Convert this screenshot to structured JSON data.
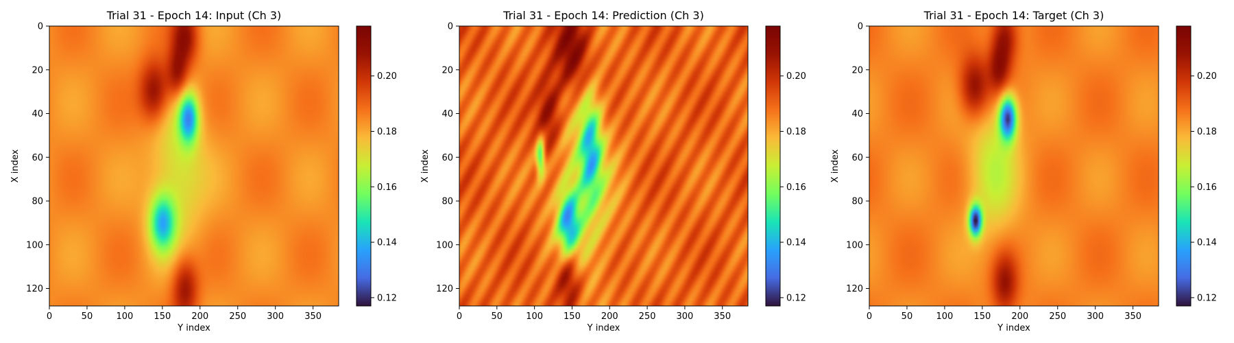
{
  "chart_data": [
    {
      "type": "heatmap",
      "title": "Trial 31 - Epoch 14: Input (Ch 3)",
      "xlabel": "Y index",
      "ylabel": "X index",
      "xlim": [
        0,
        384
      ],
      "ylim": [
        128,
        0
      ],
      "x_ticks": [
        "0",
        "50",
        "100",
        "150",
        "200",
        "250",
        "300",
        "350"
      ],
      "y_ticks": [
        "0",
        "20",
        "40",
        "60",
        "80",
        "100",
        "120"
      ],
      "colormap": "turbo",
      "colorbar": {
        "range": [
          0.117,
          0.218
        ],
        "ticks": [
          "0.12",
          "0.14",
          "0.16",
          "0.18",
          "0.20"
        ]
      },
      "background_value": 0.184,
      "features": [
        {
          "kind": "high",
          "x": 180,
          "y": 5,
          "sx": 12,
          "sy": 9,
          "value": 0.21
        },
        {
          "kind": "high",
          "x": 140,
          "y": 30,
          "sx": 14,
          "sy": 10,
          "value": 0.212
        },
        {
          "kind": "high",
          "x": 170,
          "y": 22,
          "sx": 10,
          "sy": 8,
          "value": 0.208
        },
        {
          "kind": "low",
          "x": 185,
          "y": 42,
          "sx": 9,
          "sy": 8,
          "value": 0.14
        },
        {
          "kind": "low",
          "x": 150,
          "y": 90,
          "sx": 12,
          "sy": 9,
          "value": 0.145
        },
        {
          "kind": "mid",
          "x": 170,
          "y": 65,
          "sx": 25,
          "sy": 25,
          "value": 0.168
        },
        {
          "kind": "high",
          "x": 180,
          "y": 120,
          "sx": 12,
          "sy": 10,
          "value": 0.208
        }
      ]
    },
    {
      "type": "heatmap",
      "title": "Trial 31 - Epoch 14: Prediction (Ch 3)",
      "xlabel": "Y index",
      "ylabel": "X index",
      "xlim": [
        0,
        384
      ],
      "ylim": [
        128,
        0
      ],
      "x_ticks": [
        "0",
        "50",
        "100",
        "150",
        "200",
        "250",
        "300",
        "350"
      ],
      "y_ticks": [
        "0",
        "20",
        "40",
        "60",
        "80",
        "100",
        "120"
      ],
      "colormap": "turbo",
      "colorbar": {
        "range": [
          0.117,
          0.218
        ],
        "ticks": [
          "0.12",
          "0.14",
          "0.16",
          "0.18",
          "0.20"
        ]
      },
      "background_value": 0.19,
      "features": [
        {
          "kind": "high",
          "x": 150,
          "y": 12,
          "sx": 16,
          "sy": 14,
          "value": 0.215
        },
        {
          "kind": "high",
          "x": 120,
          "y": 40,
          "sx": 12,
          "sy": 12,
          "value": 0.212
        },
        {
          "kind": "high",
          "x": 145,
          "y": 115,
          "sx": 12,
          "sy": 10,
          "value": 0.215
        },
        {
          "kind": "low",
          "x": 175,
          "y": 55,
          "sx": 10,
          "sy": 16,
          "value": 0.155
        },
        {
          "kind": "low",
          "x": 145,
          "y": 90,
          "sx": 10,
          "sy": 10,
          "value": 0.148
        },
        {
          "kind": "low",
          "x": 108,
          "y": 60,
          "sx": 4,
          "sy": 6,
          "value": 0.15
        },
        {
          "kind": "mid",
          "x": 165,
          "y": 75,
          "sx": 28,
          "sy": 30,
          "value": 0.168
        }
      ]
    },
    {
      "type": "heatmap",
      "title": "Trial 31 - Epoch 14: Target (Ch 3)",
      "xlabel": "Y index",
      "ylabel": "X index",
      "xlim": [
        0,
        384
      ],
      "ylim": [
        128,
        0
      ],
      "x_ticks": [
        "0",
        "50",
        "100",
        "150",
        "200",
        "250",
        "300",
        "350"
      ],
      "y_ticks": [
        "0",
        "20",
        "40",
        "60",
        "80",
        "100",
        "120"
      ],
      "colormap": "turbo",
      "colorbar": {
        "range": [
          0.117,
          0.218
        ],
        "ticks": [
          "0.12",
          "0.14",
          "0.16",
          "0.18",
          "0.20"
        ]
      },
      "background_value": 0.185,
      "features": [
        {
          "kind": "high",
          "x": 180,
          "y": 5,
          "sx": 12,
          "sy": 9,
          "value": 0.21
        },
        {
          "kind": "high",
          "x": 140,
          "y": 28,
          "sx": 14,
          "sy": 10,
          "value": 0.212
        },
        {
          "kind": "high",
          "x": 172,
          "y": 20,
          "sx": 10,
          "sy": 8,
          "value": 0.208
        },
        {
          "kind": "low",
          "x": 184,
          "y": 42,
          "sx": 8,
          "sy": 7,
          "value": 0.125
        },
        {
          "kind": "low",
          "x": 141,
          "y": 89,
          "sx": 6,
          "sy": 5,
          "value": 0.122
        },
        {
          "kind": "mid",
          "x": 165,
          "y": 65,
          "sx": 24,
          "sy": 24,
          "value": 0.168
        },
        {
          "kind": "high",
          "x": 180,
          "y": 118,
          "sx": 12,
          "sy": 10,
          "value": 0.208
        }
      ]
    }
  ]
}
